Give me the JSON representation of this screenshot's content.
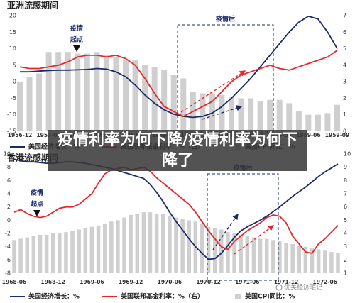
{
  "chart_data": [
    {
      "type": "combo",
      "title": "亚洲流感期间",
      "categories": [
        "1956-12",
        null,
        null,
        "1957-03",
        null,
        null,
        "1957-06",
        null,
        null,
        "1957-09",
        null,
        null,
        "1957-12",
        null,
        null,
        "1958-03",
        null,
        null,
        "1958-06",
        null,
        null,
        "1958-09",
        null,
        null,
        "1958-12",
        null,
        null,
        "1959-03",
        null,
        null,
        "1959-06",
        null,
        null,
        "1959-09"
      ],
      "ylim": [
        -15,
        20
      ],
      "yticks": [
        -15,
        -10,
        -5,
        0,
        5,
        10,
        15,
        20
      ],
      "y2lim": [
        0,
        7
      ],
      "y2ticks": [
        0,
        1,
        2,
        3,
        4,
        5,
        6,
        7
      ],
      "start_label": [
        "疫情",
        "起点"
      ],
      "post_label": "疫情后",
      "series": [
        {
          "name": "美国经济增长：%",
          "type": "line",
          "color": "#1b2a6b",
          "values": [
            3,
            3,
            3.2,
            3.4,
            3.5,
            3.5,
            3.6,
            3.7,
            4,
            3.8,
            3,
            1.5,
            -1,
            -4,
            -6.5,
            -8.5,
            -9.8,
            -10.5,
            -10.8,
            -10.5,
            -9.5,
            -7.5,
            -5,
            -2,
            1,
            4.5,
            8,
            11.5,
            15,
            18,
            19.8,
            19,
            15,
            10
          ]
        },
        {
          "name": "美国联邦基金利率：%（右）",
          "type": "line",
          "axis": "y2",
          "color": "#e8262a",
          "values": [
            3.9,
            3.8,
            3.8,
            3.9,
            4.0,
            4.2,
            4.5,
            4.6,
            4.6,
            4.5,
            4.6,
            4.4,
            4.0,
            3.2,
            2.3,
            1.5,
            1.2,
            0.9,
            1.2,
            1.5,
            1.8,
            2.4,
            3.0,
            3.4,
            3.6,
            3.8,
            4.0,
            3.8,
            3.7,
            3.9,
            4.1,
            4.3,
            4.5,
            4.9
          ]
        },
        {
          "name": "美国CPI同比：%",
          "type": "bar",
          "axis": "y2",
          "color": "#cfcfcf",
          "values": [
            3.0,
            3.3,
            3.5,
            4.8,
            4.8,
            4.8,
            4.7,
            4.7,
            4.8,
            4.6,
            4.5,
            4.3,
            4.3,
            4.0,
            3.9,
            3.7,
            3.4,
            3.2,
            2.4,
            2.3,
            2.3,
            2.2,
            2.1,
            2.0,
            2.0,
            1.8,
            1.9,
            1.9,
            1.7,
            1.2,
            1.0,
            1.0,
            1.1,
            1.6
          ]
        }
      ]
    },
    {
      "type": "combo",
      "title": "香港流感期间",
      "categories": [
        "1968-06",
        null,
        null,
        null,
        null,
        null,
        "1968-12",
        null,
        null,
        null,
        null,
        null,
        "1969-06",
        null,
        null,
        null,
        null,
        null,
        "1969-12",
        null,
        null,
        null,
        null,
        null,
        "1970-06",
        null,
        null,
        null,
        null,
        null,
        "1970-12",
        null,
        null,
        null,
        null,
        null,
        "1971-06",
        null,
        null,
        null,
        null,
        null,
        "1971-12",
        null,
        null,
        null,
        null,
        null,
        "1972-06",
        null,
        null
      ],
      "ylim": [
        -8,
        10
      ],
      "yticks": [
        -8,
        -6,
        -4,
        -2,
        0,
        2,
        4,
        6,
        8,
        10
      ],
      "y2lim": [
        1,
        10
      ],
      "y2ticks": [
        1,
        2,
        3,
        4,
        5,
        6,
        7,
        8,
        9,
        10
      ],
      "start_label": [
        "疫情",
        "起点"
      ],
      "post_label": "疫情后",
      "series": [
        {
          "name": "美国经济增长：%",
          "type": "line",
          "color": "#1b2a6b",
          "values": [
            9.2,
            9.0,
            8.8,
            8.8,
            8.7,
            8.6,
            8.6,
            8.7,
            8.8,
            8.8,
            8.7,
            8.6,
            8.4,
            8.2,
            8.0,
            7.8,
            7.5,
            7.2,
            6.9,
            6.6,
            6.3,
            5.4,
            4.2,
            2.8,
            1.2,
            -0.2,
            -1.5,
            -2.8,
            -4.0,
            -5.0,
            -5.9,
            -5.8,
            -5.0,
            -3.8,
            -2.6,
            -1.6,
            -1.0,
            -0.5,
            0.0,
            0.6,
            1.3,
            2.0,
            2.8,
            3.6,
            4.3,
            5.0,
            5.8,
            6.6,
            7.3,
            7.9,
            8.5
          ]
        },
        {
          "name": "美国联邦基金利率：%（右）",
          "type": "line",
          "axis": "y2",
          "color": "#e8262a",
          "values": [
            5.6,
            5.8,
            5.5,
            5.3,
            5.2,
            5.3,
            5.6,
            5.9,
            6.0,
            6.0,
            6.2,
            6.6,
            7.0,
            7.8,
            8.5,
            8.8,
            8.9,
            9.0,
            8.8,
            8.9,
            9.0,
            8.7,
            8.2,
            7.8,
            7.4,
            7.0,
            6.6,
            6.2,
            5.6,
            4.9,
            4.2,
            3.6,
            3.0,
            2.8,
            3.4,
            3.8,
            4.2,
            4.5,
            4.8,
            5.2,
            5.4,
            5.3,
            4.8,
            3.8,
            3.2,
            2.6,
            2.5,
            3.2,
            3.6,
            4.1,
            4.6
          ]
        },
        {
          "name": "美国CPI同比：%",
          "type": "bar",
          "axis": "y2",
          "color": "#cfcfcf",
          "values": [
            3.5,
            3.6,
            3.7,
            3.8,
            3.9,
            3.9,
            4.0,
            4.0,
            4.1,
            4.2,
            4.3,
            4.4,
            4.5,
            4.6,
            4.7,
            4.9,
            5.0,
            5.2,
            5.4,
            5.5,
            5.6,
            5.6,
            5.5,
            5.5,
            5.3,
            5.2,
            5.1,
            5.0,
            4.9,
            4.7,
            4.5,
            4.4,
            4.3,
            4.1,
            4.0,
            3.9,
            3.8,
            3.7,
            3.6,
            3.6,
            3.5,
            3.4,
            3.3,
            3.2,
            3.1,
            3.0,
            2.9,
            2.8,
            2.7,
            2.6,
            2.5
          ]
        }
      ]
    }
  ],
  "overlay": {
    "headline": "疫情利率为何下降/疫情利率为何下降了"
  },
  "watermark": "优美经济笔记"
}
